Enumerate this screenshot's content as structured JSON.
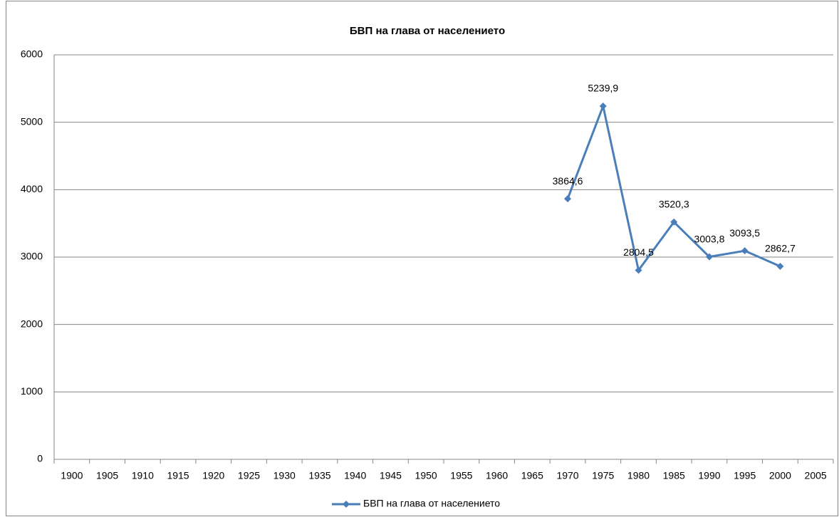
{
  "chart_data": {
    "type": "line",
    "title": "БВП на глава от населението",
    "categories": [
      "1900",
      "1905",
      "1910",
      "1915",
      "1920",
      "1925",
      "1930",
      "1935",
      "1940",
      "1945",
      "1950",
      "1955",
      "1960",
      "1965",
      "1970",
      "1975",
      "1980",
      "1985",
      "1990",
      "1995",
      "2000",
      "2005"
    ],
    "series": [
      {
        "name": "БВП на глава от населението",
        "color": "#4a7ebb",
        "values": [
          null,
          null,
          null,
          null,
          null,
          null,
          null,
          null,
          null,
          null,
          null,
          null,
          null,
          null,
          3864.6,
          5239.9,
          2804.5,
          3520.3,
          3003.8,
          3093.5,
          2862.7,
          null
        ],
        "value_labels": [
          null,
          null,
          null,
          null,
          null,
          null,
          null,
          null,
          null,
          null,
          null,
          null,
          null,
          null,
          "3864,6",
          "5239,9",
          "2804,5",
          "3520,3",
          "3003,8",
          "3093,5",
          "2862,7",
          null
        ]
      }
    ],
    "ylim": [
      0,
      6000
    ],
    "yticks": [
      0,
      1000,
      2000,
      3000,
      4000,
      5000,
      6000
    ],
    "grid": true,
    "legend": "bottom"
  }
}
